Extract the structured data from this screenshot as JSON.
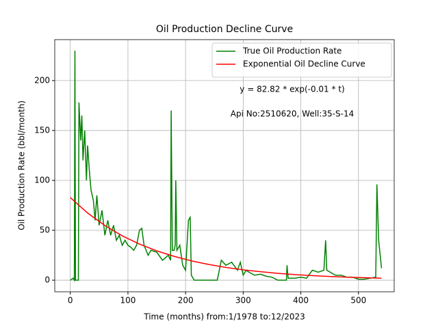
{
  "chart_data": {
    "type": "line",
    "title": "Oil Production Decline Curve",
    "xlabel": "Time (months) from:1/1978 to:12/2023",
    "ylabel": "Oil Production Rate (bbl/month)",
    "annotations": [
      "y = 82.82 * exp(-0.01 * t)",
      "Api No:2510620, Well:35-S-14"
    ],
    "xlim": [
      -27,
      562
    ],
    "ylim": [
      -11.6,
      241
    ],
    "xticks": [
      0,
      100,
      200,
      300,
      400,
      500
    ],
    "yticks": [
      0,
      50,
      100,
      150,
      200
    ],
    "grid": true,
    "legend": "upper right",
    "series": [
      {
        "name": "True Oil Production Rate",
        "color": "#008000",
        "x": [
          0,
          5,
          7,
          8,
          9,
          14,
          15,
          18,
          20,
          22,
          25,
          28,
          30,
          33,
          36,
          40,
          43,
          46,
          50,
          55,
          60,
          65,
          70,
          75,
          80,
          85,
          90,
          95,
          100,
          105,
          110,
          115,
          120,
          124,
          128,
          135,
          140,
          150,
          160,
          170,
          174,
          175,
          177,
          180,
          182,
          183,
          185,
          190,
          195,
          200,
          205,
          208,
          210,
          215,
          230,
          245,
          255,
          262,
          270,
          280,
          290,
          295,
          300,
          305,
          310,
          320,
          330,
          340,
          350,
          360,
          375,
          376,
          378,
          390,
          400,
          410,
          420,
          430,
          440,
          443,
          445,
          460,
          470,
          480,
          490,
          500,
          510,
          520,
          530,
          532,
          535,
          540
        ],
        "values": [
          0,
          2,
          0,
          230,
          0,
          0,
          178,
          140,
          165,
          120,
          150,
          100,
          135,
          110,
          90,
          80,
          60,
          85,
          55,
          70,
          45,
          60,
          45,
          55,
          40,
          45,
          35,
          40,
          35,
          33,
          30,
          35,
          50,
          52,
          35,
          25,
          30,
          28,
          20,
          25,
          20,
          170,
          30,
          30,
          35,
          100,
          30,
          35,
          15,
          10,
          60,
          63,
          5,
          0,
          0,
          0,
          0,
          20,
          15,
          18,
          10,
          18,
          5,
          10,
          8,
          5,
          6,
          4,
          3,
          0,
          0,
          15,
          2,
          2,
          3,
          2,
          10,
          8,
          10,
          40,
          10,
          5,
          5,
          3,
          3,
          1,
          1,
          2,
          3,
          96,
          40,
          12
        ]
      },
      {
        "name": "Exponential Oil Decline Curve",
        "color": "#ff0000",
        "x": [
          0,
          30,
          60,
          90,
          120,
          150,
          180,
          210,
          240,
          270,
          300,
          330,
          360,
          390,
          420,
          450,
          480,
          510,
          540
        ],
        "values": [
          82.82,
          67.3,
          54.8,
          44.5,
          36.2,
          29.4,
          23.9,
          19.4,
          15.8,
          12.8,
          10.4,
          8.5,
          6.9,
          5.6,
          4.6,
          3.7,
          3.0,
          2.5,
          2.0
        ]
      }
    ]
  }
}
